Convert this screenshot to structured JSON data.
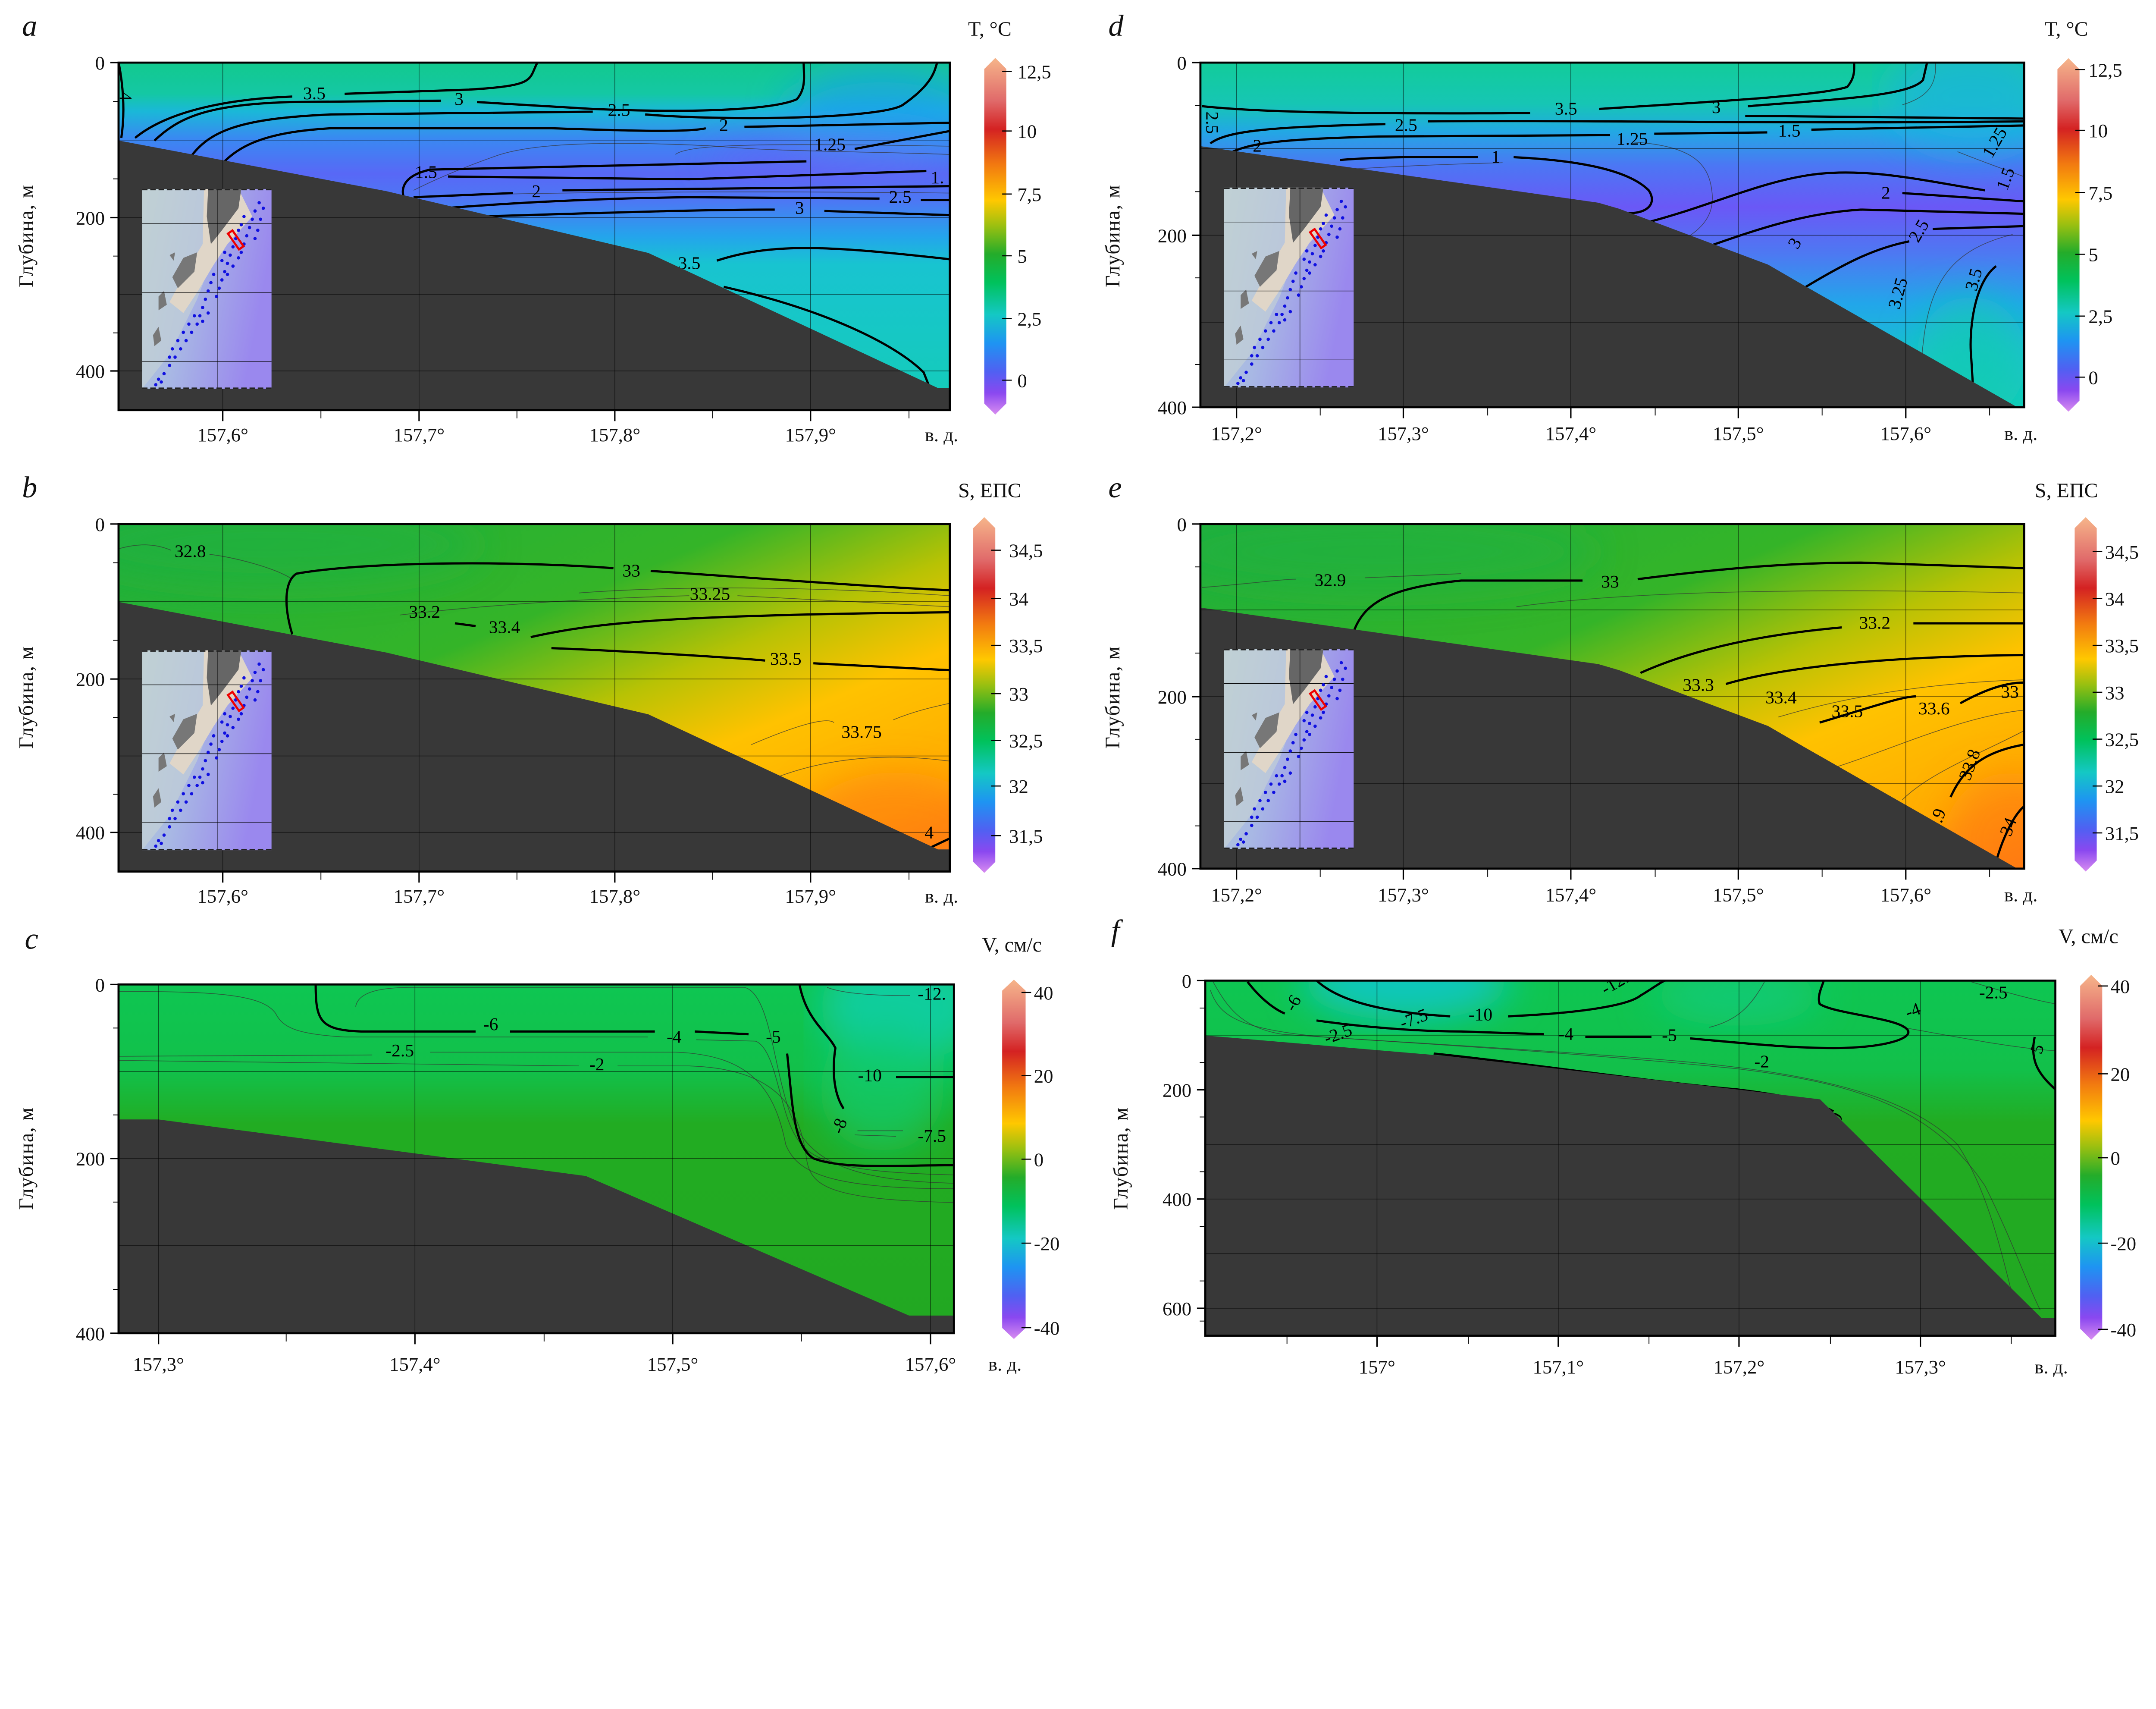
{
  "chart_data": [
    {
      "panel": "a",
      "type": "heatmap",
      "title": "T, °C",
      "xlabel": "в. д.",
      "ylabel": "Глубина, м",
      "x_ticks": [
        "157,6°",
        "157,7°",
        "157,8°",
        "157,9°"
      ],
      "y_ticks": [
        "0",
        "200",
        "400"
      ],
      "xlim": [
        157.55,
        157.97
      ],
      "ylim": [
        450,
        0
      ],
      "colorbar": {
        "label": "T, °C",
        "ticks": [
          "12,5",
          "10",
          "7,5",
          "5",
          "2,5",
          "0"
        ],
        "range": [
          -1.25,
          12.5
        ]
      },
      "contour_labels": [
        "4",
        "3.5",
        "3",
        "2.5",
        "2",
        "1.25",
        "1.5",
        "1.",
        "2",
        "2.5",
        "3",
        "3.5"
      ]
    },
    {
      "panel": "b",
      "type": "heatmap",
      "title": "S, ЕПС",
      "xlabel": "в. д.",
      "ylabel": "Глубина, м",
      "x_ticks": [
        "157,6°",
        "157,7°",
        "157,8°",
        "157,9°"
      ],
      "y_ticks": [
        "0",
        "200",
        "400"
      ],
      "xlim": [
        157.55,
        157.97
      ],
      "ylim": [
        450,
        0
      ],
      "colorbar": {
        "label": "S, ЕПС",
        "ticks": [
          "34,5",
          "34",
          "33,5",
          "33",
          "32,5",
          "32",
          "31,5"
        ],
        "range": [
          31.25,
          34.75
        ]
      },
      "contour_labels": [
        "32.8",
        "33",
        "33.25",
        "33.2",
        "33.4",
        "33.5",
        "33.75",
        "4"
      ]
    },
    {
      "panel": "c",
      "type": "heatmap",
      "title": "V, см/с",
      "xlabel": "в. д.",
      "ylabel": "Глубина, м",
      "x_ticks": [
        "157,3°",
        "157,4°",
        "157,5°",
        "157,6°"
      ],
      "y_ticks": [
        "0",
        "200",
        "400"
      ],
      "xlim": [
        157.28,
        157.61
      ],
      "ylim": [
        400,
        0
      ],
      "colorbar": {
        "label": "V, см/с",
        "ticks": [
          "40",
          "20",
          "0",
          "-20",
          "-40"
        ],
        "range": [
          -40,
          40
        ]
      },
      "contour_labels": [
        "-12.",
        "-6",
        "-4",
        "-5",
        "-2.5",
        "-2",
        "-10",
        "-8",
        "-7.5"
      ]
    },
    {
      "panel": "d",
      "type": "heatmap",
      "title": "T, °C",
      "xlabel": "в. д.",
      "ylabel": "Глубина, м",
      "x_ticks": [
        "157,2°",
        "157,3°",
        "157,4°",
        "157,5°",
        "157,6°"
      ],
      "y_ticks": [
        "0",
        "200",
        "400"
      ],
      "xlim": [
        157.18,
        157.67
      ],
      "ylim": [
        400,
        0
      ],
      "colorbar": {
        "label": "T, °C",
        "ticks": [
          "12,5",
          "10",
          "7,5",
          "5",
          "2,5",
          "0"
        ],
        "range": [
          -1.25,
          12.5
        ]
      },
      "contour_labels": [
        "2.5",
        "2",
        "3.5",
        "3",
        "2.5",
        "1.25",
        "1.5",
        "1",
        "1.25",
        "1.5",
        "2",
        "2.5",
        "3",
        "3.25",
        "3.5"
      ]
    },
    {
      "panel": "e",
      "type": "heatmap",
      "title": "S, ЕПС",
      "xlabel": "в. д.",
      "ylabel": "Глубина, м",
      "x_ticks": [
        "157,2°",
        "157,3°",
        "157,4°",
        "157,5°",
        "157,6°"
      ],
      "y_ticks": [
        "0",
        "200",
        "400"
      ],
      "xlim": [
        157.18,
        157.67
      ],
      "ylim": [
        400,
        0
      ],
      "colorbar": {
        "label": "S, ЕПС",
        "ticks": [
          "34,5",
          "34",
          "33,5",
          "33",
          "32,5",
          "32",
          "31,5"
        ],
        "range": [
          31.25,
          34.75
        ]
      },
      "contour_labels": [
        "32.9",
        "33",
        "33.2",
        "33.3",
        "33.4",
        "33.5",
        "33.6",
        "33",
        "33.8",
        "33.9",
        "34"
      ]
    },
    {
      "panel": "f",
      "type": "heatmap",
      "title": "V, см/с",
      "xlabel": "в. д.",
      "ylabel": "Глубина, м",
      "x_ticks": [
        "157°",
        "157,1°",
        "157,2°",
        "157,3°"
      ],
      "y_ticks": [
        "0",
        "200",
        "400",
        "600"
      ],
      "xlim": [
        156.9,
        157.37
      ],
      "ylim": [
        650,
        0
      ],
      "colorbar": {
        "label": "V, см/с",
        "ticks": [
          "40",
          "20",
          "0",
          "-20",
          "-40"
        ],
        "range": [
          -40,
          40
        ]
      },
      "contour_labels": [
        "-6",
        "-7.5",
        "-10",
        "-12.",
        "-2.5",
        "-4",
        "-5",
        "-2",
        "0",
        "-4",
        "-2.5",
        "5"
      ]
    }
  ]
}
